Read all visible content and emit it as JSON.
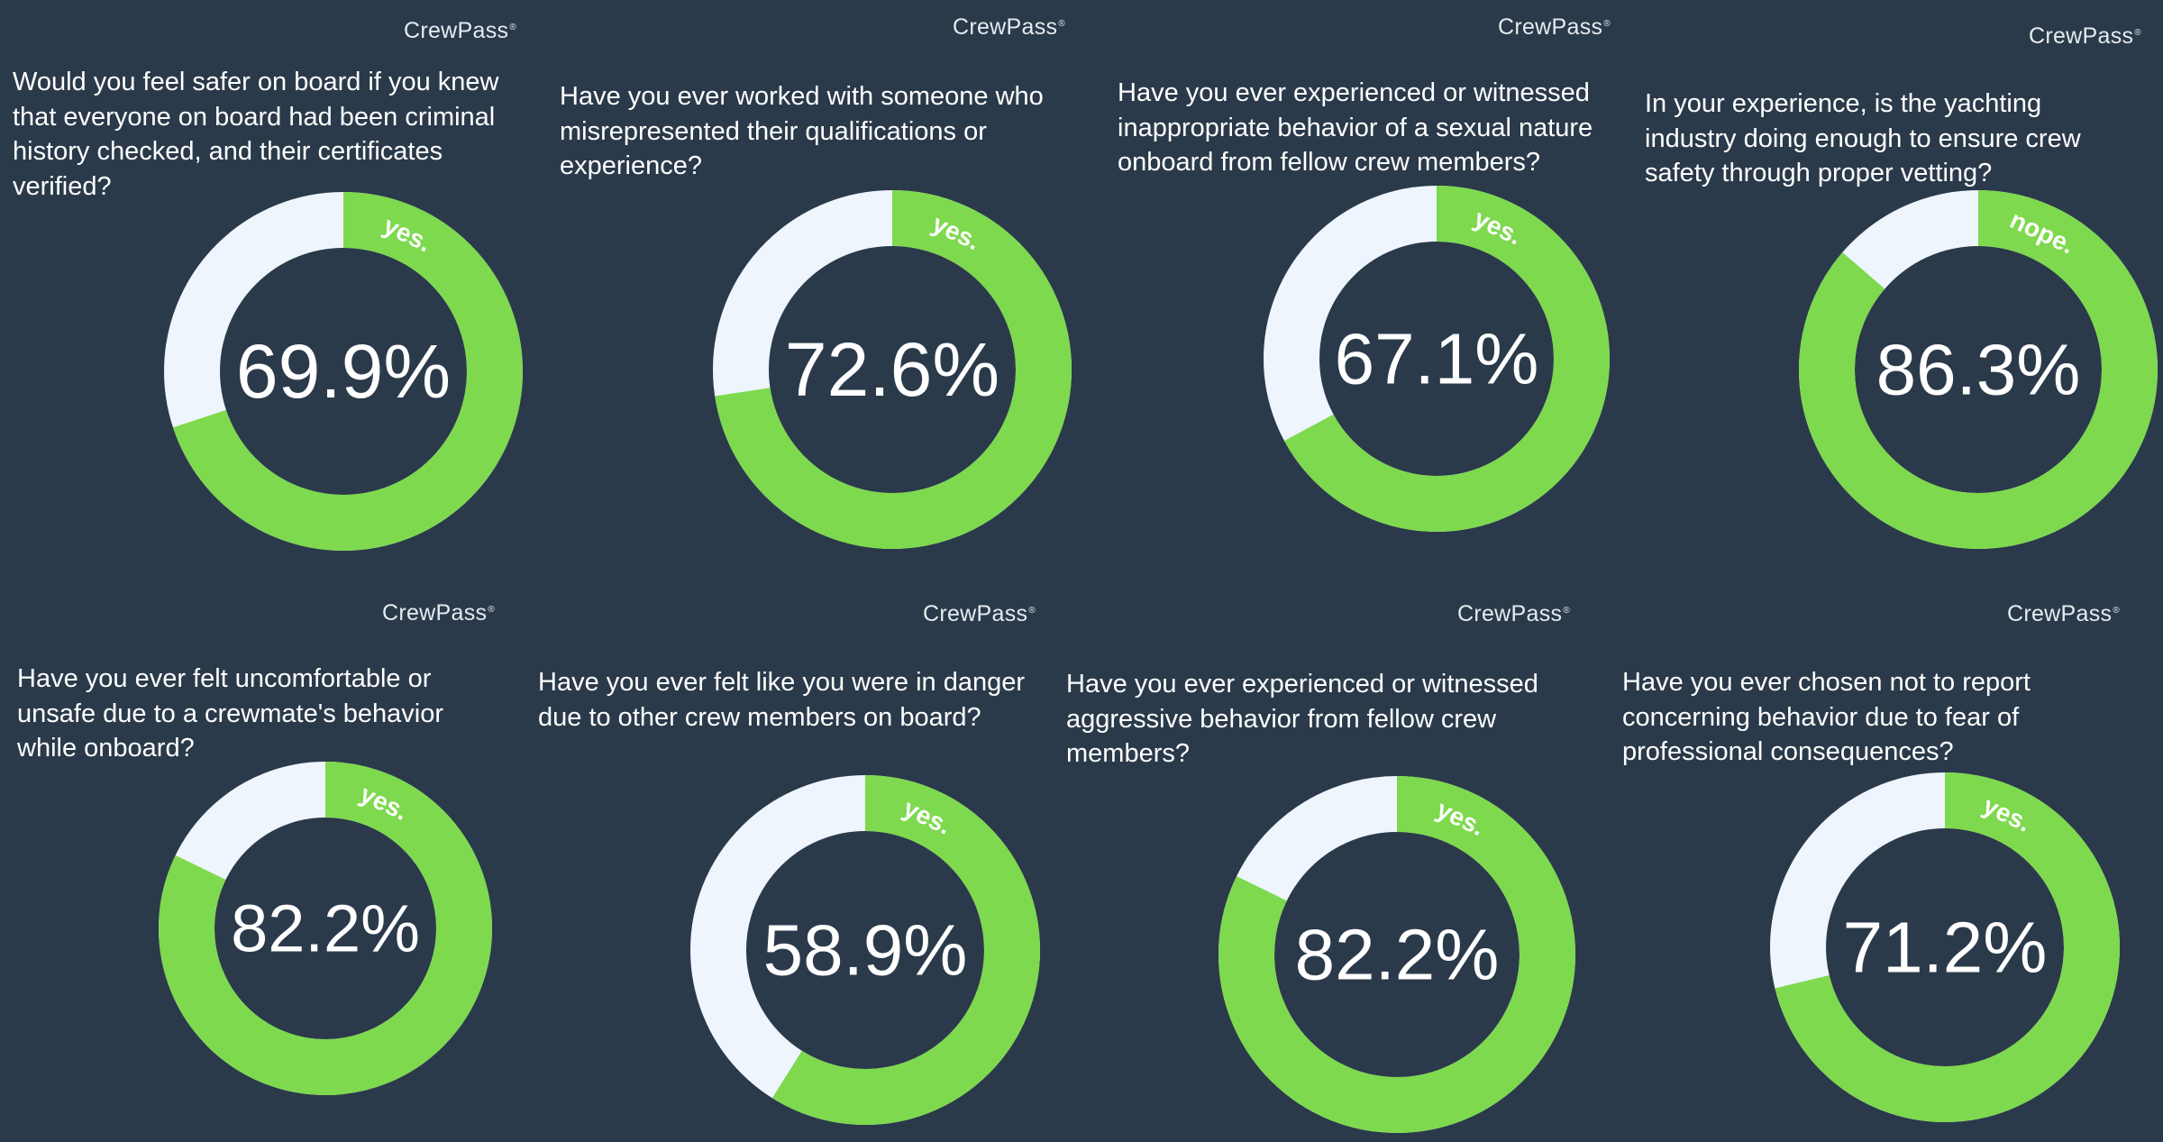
{
  "brand": {
    "name": "CrewPass",
    "mark": "®"
  },
  "colors": {
    "background": "#2b3a4a",
    "fill": "#7ed94e",
    "track": "#eef5fd",
    "text": "#ffffff"
  },
  "chart_data": [
    {
      "type": "pie",
      "question": "Would you feel safer on board if you knew that everyone on board had been criminal history checked, and their certificates verified?",
      "answer": "yes.",
      "value": 69.9,
      "label": "69.9%"
    },
    {
      "type": "pie",
      "question": "Have you ever worked with someone who misrepresented their qualifications or experience?",
      "answer": "yes.",
      "value": 72.6,
      "label": "72.6%"
    },
    {
      "type": "pie",
      "question": "Have you ever experienced or witnessed inappropriate behavior of a sexual nature onboard from fellow crew members?",
      "answer": "yes.",
      "value": 67.1,
      "label": "67.1%"
    },
    {
      "type": "pie",
      "question": "In your experience, is the yachting industry doing enough to ensure crew safety through proper vetting?",
      "answer": "nope.",
      "value": 86.3,
      "label": "86.3%"
    },
    {
      "type": "pie",
      "question": "Have you ever felt uncomfortable or unsafe due to a crewmate's behavior while onboard?",
      "answer": "yes.",
      "value": 82.2,
      "label": "82.2%"
    },
    {
      "type": "pie",
      "question": "Have you ever felt like you were in danger due to other crew members on board?",
      "answer": "yes.",
      "value": 58.9,
      "label": "58.9%"
    },
    {
      "type": "pie",
      "question": "Have you ever experienced or witnessed aggressive behavior from fellow crew members?",
      "answer": "yes.",
      "value": 82.2,
      "label": "82.2%"
    },
    {
      "type": "pie",
      "question": "Have you ever chosen not to report concerning behavior due to fear of professional consequences?",
      "answer": "yes.",
      "value": 71.2,
      "label": "71.2%"
    }
  ]
}
